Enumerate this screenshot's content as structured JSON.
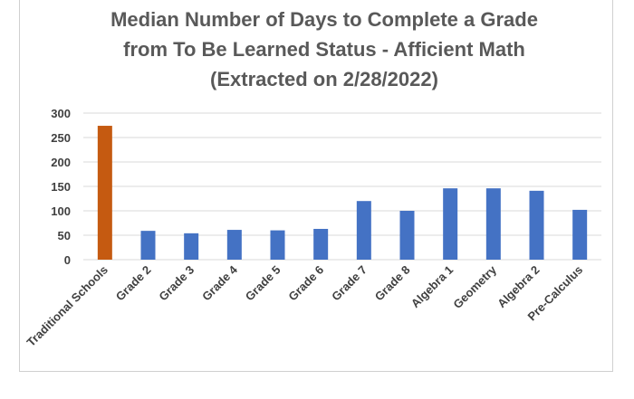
{
  "chart_data": {
    "type": "bar",
    "title_lines": [
      "Median Number of Days to Complete a Grade",
      "from To Be Learned Status - Afficient Math",
      "(Extracted on 2/28/2022)"
    ],
    "xlabel": "",
    "ylabel": "",
    "ylim": [
      0,
      300
    ],
    "yticks": [
      0,
      50,
      100,
      150,
      200,
      250,
      300
    ],
    "grid": true,
    "categories": [
      "Traditional Schools",
      "Grade 2",
      "Grade 3",
      "Grade 4",
      "Grade 5",
      "Grade 6",
      "Grade 7",
      "Grade 8",
      "Algebra 1",
      "Geometry",
      "Algebra 2",
      "Pre-Calculus"
    ],
    "values": [
      274,
      59,
      54,
      61,
      60,
      63,
      120,
      100,
      146,
      146,
      141,
      102
    ],
    "colors": [
      "#c55a11",
      "#4472c4",
      "#4472c4",
      "#4472c4",
      "#4472c4",
      "#4472c4",
      "#4472c4",
      "#4472c4",
      "#4472c4",
      "#4472c4",
      "#4472c4",
      "#4472c4"
    ]
  }
}
